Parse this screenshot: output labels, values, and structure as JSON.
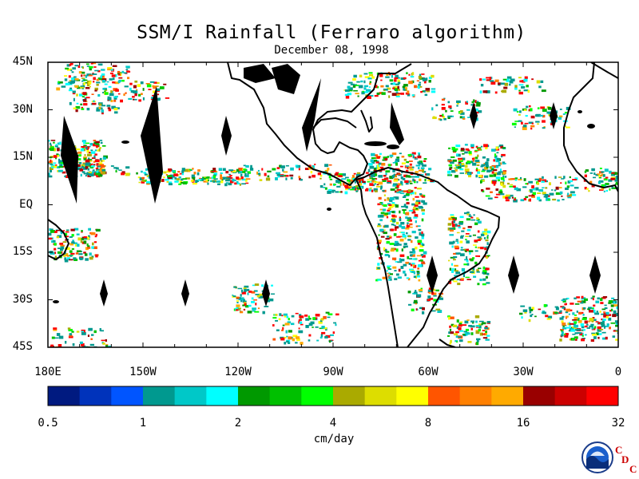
{
  "title": "SSM/I Rainfall (Ferraro algorithm)",
  "date": "December 08, 1998",
  "y_axis": {
    "ticks": [
      {
        "label": "45N",
        "lat": 45
      },
      {
        "label": "30N",
        "lat": 30
      },
      {
        "label": "15N",
        "lat": 15
      },
      {
        "label": "EQ",
        "lat": 0
      },
      {
        "label": "15S",
        "lat": -15
      },
      {
        "label": "30S",
        "lat": -30
      },
      {
        "label": "45S",
        "lat": -45
      }
    ]
  },
  "x_axis": {
    "ticks": [
      {
        "label": "180E",
        "lon": -180
      },
      {
        "label": "150W",
        "lon": -150
      },
      {
        "label": "120W",
        "lon": -120
      },
      {
        "label": "90W",
        "lon": -90
      },
      {
        "label": "60W",
        "lon": -60
      },
      {
        "label": "30W",
        "lon": -30
      },
      {
        "label": "0",
        "lon": 0
      }
    ]
  },
  "colorbar": {
    "unit": "cm/day",
    "colors": [
      "#001a80",
      "#0033bb",
      "#0055ff",
      "#00998f",
      "#00c8c8",
      "#00ffff",
      "#009900",
      "#00c000",
      "#00ff00",
      "#aaaa00",
      "#dddd00",
      "#ffff00",
      "#ff5500",
      "#ff8000",
      "#ffaa00",
      "#990000",
      "#cc0000",
      "#ff0000"
    ],
    "labels": [
      "0.5",
      "1",
      "2",
      "4",
      "8",
      "16",
      "32"
    ]
  },
  "logo": {
    "org": "NOAA",
    "badge": "CDC",
    "letters": [
      "C",
      "D",
      "C"
    ]
  }
}
